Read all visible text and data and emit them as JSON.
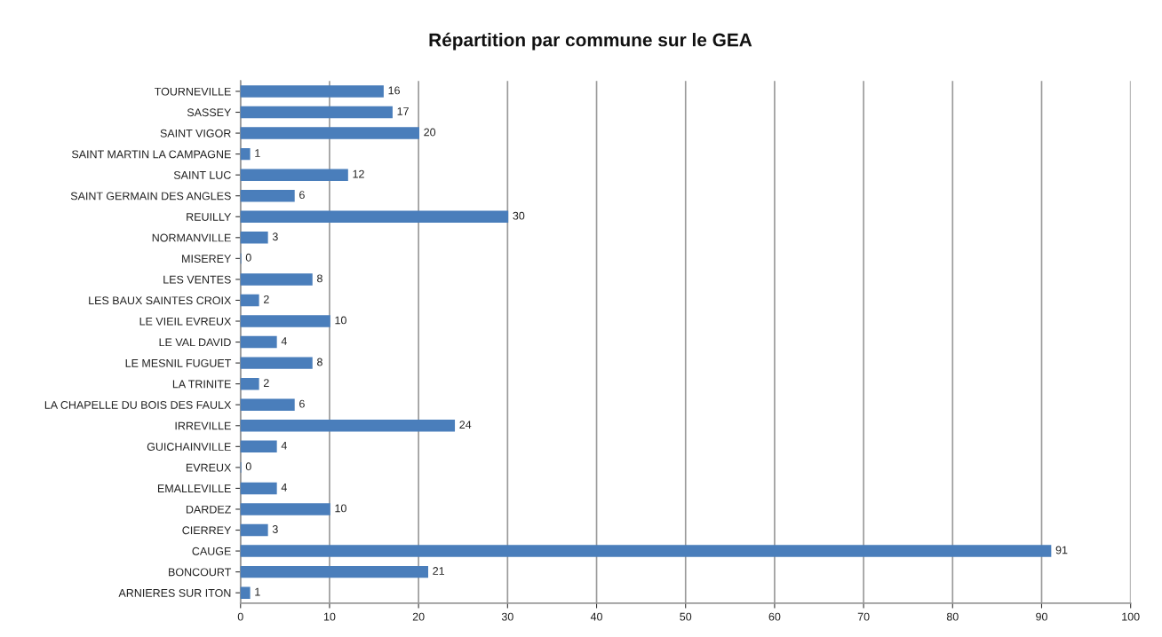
{
  "chart_data": {
    "type": "bar",
    "orientation": "horizontal",
    "title": "Répartition par commune sur le GEA",
    "categories": [
      "TOURNEVILLE",
      "SASSEY",
      "SAINT VIGOR",
      "SAINT MARTIN LA CAMPAGNE",
      "SAINT LUC",
      "SAINT GERMAIN DES ANGLES",
      "REUILLY",
      "NORMANVILLE",
      "MISEREY",
      "LES VENTES",
      "LES BAUX SAINTES CROIX",
      "LE VIEIL EVREUX",
      "LE VAL DAVID",
      "LE MESNIL FUGUET",
      "LA TRINITE",
      "LA CHAPELLE DU BOIS DES FAULX",
      "IRREVILLE",
      "GUICHAINVILLE",
      "EVREUX",
      "EMALLEVILLE",
      "DARDEZ",
      "CIERREY",
      "CAUGE",
      "BONCOURT",
      "ARNIERES SUR ITON"
    ],
    "values": [
      16,
      17,
      20,
      1,
      12,
      6,
      30,
      3,
      0,
      8,
      2,
      10,
      4,
      8,
      2,
      6,
      24,
      4,
      0,
      4,
      10,
      3,
      91,
      21,
      1
    ],
    "color": "#4a7ebb",
    "xlim": [
      0,
      100
    ],
    "xticks": [
      0,
      10,
      20,
      30,
      40,
      50,
      60,
      70,
      80,
      90,
      100
    ],
    "grid": "x",
    "data_labels": true,
    "legend": false
  }
}
